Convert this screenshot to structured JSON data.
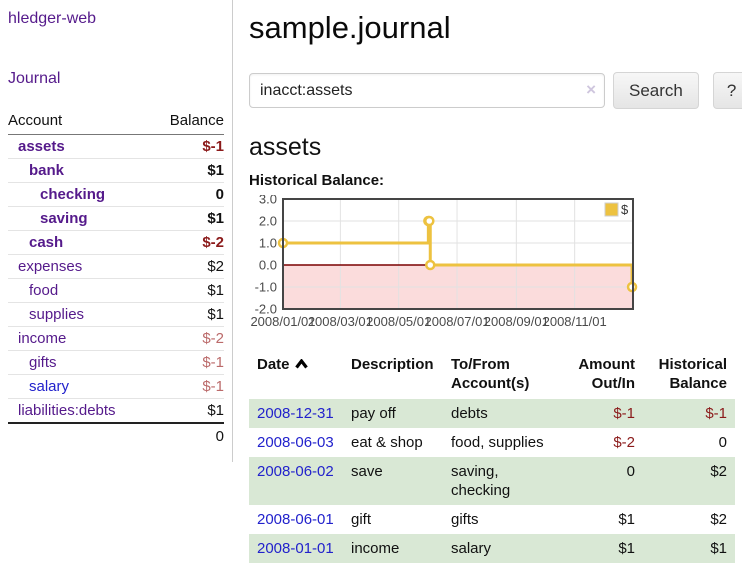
{
  "app": {
    "title": "hledger-web"
  },
  "sidebar": {
    "journal_link": "Journal",
    "accounts_table": {
      "headers": {
        "account": "Account",
        "balance": "Balance"
      },
      "rows": [
        {
          "name": "assets",
          "balance": "$-1",
          "level": 0,
          "bold": true,
          "name_color": "purple",
          "balance_style": "neg"
        },
        {
          "name": "bank",
          "balance": "$1",
          "level": 1,
          "bold": true,
          "name_color": "purple",
          "balance_style": "pos"
        },
        {
          "name": "checking",
          "balance": "0",
          "level": 2,
          "bold": true,
          "name_color": "purple",
          "balance_style": "pos"
        },
        {
          "name": "saving",
          "balance": "$1",
          "level": 2,
          "bold": true,
          "name_color": "purple",
          "balance_style": "pos"
        },
        {
          "name": "cash",
          "balance": "$-2",
          "level": 1,
          "bold": true,
          "name_color": "purple",
          "balance_style": "neg"
        },
        {
          "name": "expenses",
          "balance": "$2",
          "level": 0,
          "bold": false,
          "name_color": "purple",
          "balance_style": "pos"
        },
        {
          "name": "food",
          "balance": "$1",
          "level": 1,
          "bold": false,
          "name_color": "purple",
          "balance_style": "pos"
        },
        {
          "name": "supplies",
          "balance": "$1",
          "level": 1,
          "bold": false,
          "name_color": "purple",
          "balance_style": "pos"
        },
        {
          "name": "income",
          "balance": "$-2",
          "level": 0,
          "bold": false,
          "name_color": "purple",
          "balance_style": "neg-light"
        },
        {
          "name": "gifts",
          "balance": "$-1",
          "level": 1,
          "bold": false,
          "name_color": "purple",
          "balance_style": "neg-light"
        },
        {
          "name": "salary",
          "balance": "$-1",
          "level": 1,
          "bold": false,
          "name_color": "blue",
          "balance_style": "neg-light"
        },
        {
          "name": "liabilities:debts",
          "balance": "$1",
          "level": 0,
          "bold": false,
          "name_color": "purple",
          "balance_style": "pos"
        }
      ],
      "total": "0"
    }
  },
  "main": {
    "title": "sample.journal",
    "search": {
      "value": "inacct:assets",
      "clear_label": "×",
      "button_label": "Search",
      "help_label": "?"
    },
    "account_heading": "assets"
  },
  "chart_data": {
    "type": "line",
    "title": "Historical Balance:",
    "step": true,
    "x_range": [
      "2008-01-01",
      "2009-01-01"
    ],
    "x_ticks": [
      "2008/01/01",
      "2008/03/01",
      "2008/05/01",
      "2008/07/01",
      "2008/09/01",
      "2008/11/01"
    ],
    "y_ticks": [
      -2.0,
      -1.0,
      0.0,
      1.0,
      2.0,
      3.0
    ],
    "ylim": [
      -2,
      3
    ],
    "series": [
      {
        "name": "$",
        "color": "#edc240",
        "points": [
          {
            "date": "2008-01-01",
            "value": 1
          },
          {
            "date": "2008-06-01",
            "value": 2
          },
          {
            "date": "2008-06-02",
            "value": 2
          },
          {
            "date": "2008-06-03",
            "value": 0
          },
          {
            "date": "2008-12-31",
            "value": -1
          }
        ]
      }
    ],
    "legend": {
      "label": "$",
      "position": "top-right"
    },
    "negative_region_color": "#fbdcdc",
    "zero_line_color": "#7a0000",
    "grid_color": "#e2e2e2",
    "border_color": "#454545",
    "tick_color": "#4a4a4a"
  },
  "transactions": {
    "headers": {
      "date": "Date",
      "description": "Description",
      "accounts": "To/From Account(s)",
      "amount": "Amount Out/In",
      "balance": "Historical Balance"
    },
    "rows": [
      {
        "date": "2008-12-31",
        "description": "pay off",
        "accounts": "debts",
        "amount": "$-1",
        "amount_style": "neg",
        "balance": "$-1",
        "balance_style": "neg"
      },
      {
        "date": "2008-06-03",
        "description": "eat & shop",
        "accounts": "food, supplies",
        "amount": "$-2",
        "amount_style": "neg",
        "balance": "0",
        "balance_style": "pos"
      },
      {
        "date": "2008-06-02",
        "description": "save",
        "accounts": "saving, checking",
        "amount": "0",
        "amount_style": "pos",
        "balance": "$2",
        "balance_style": "pos"
      },
      {
        "date": "2008-06-01",
        "description": "gift",
        "accounts": "gifts",
        "amount": "$1",
        "amount_style": "pos",
        "balance": "$2",
        "balance_style": "pos"
      },
      {
        "date": "2008-01-01",
        "description": "income",
        "accounts": "salary",
        "amount": "$1",
        "amount_style": "pos",
        "balance": "$1",
        "balance_style": "pos"
      }
    ]
  }
}
